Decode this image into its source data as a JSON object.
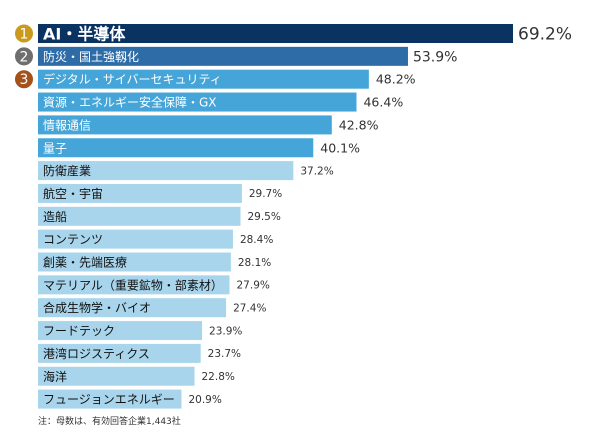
{
  "chart_data": {
    "type": "bar",
    "orientation": "horizontal",
    "categories": [
      "AI・半導体",
      "防災・国土強靱化",
      "デジタル・サイバーセキュリティ",
      "資源・エネルギー安全保障・GX",
      "情報通信",
      "量子",
      "防衛産業",
      "航空・宇宙",
      "造船",
      "コンテンツ",
      "創薬・先端医療",
      "マテリアル（重要鉱物・部素材）",
      "合成生物学・バイオ",
      "フードテック",
      "港湾ロジスティクス",
      "海洋",
      "フュージョンエネルギー"
    ],
    "values": [
      69.2,
      53.9,
      48.2,
      46.4,
      42.8,
      40.1,
      37.2,
      29.7,
      29.5,
      28.4,
      28.1,
      27.9,
      27.4,
      23.9,
      23.7,
      22.8,
      20.9
    ],
    "value_labels": [
      "69.2%",
      "53.9%",
      "48.2%",
      "46.4%",
      "42.8%",
      "40.1%",
      "37.2%",
      "29.7%",
      "29.5%",
      "28.4%",
      "28.1%",
      "27.9%",
      "27.4%",
      "23.9%",
      "23.7%",
      "22.8%",
      "20.9%"
    ],
    "rank_badges": [
      "1",
      "2",
      "3"
    ],
    "unit": "%",
    "xlim": [
      0,
      70
    ],
    "grid": false,
    "colors": {
      "rank1": "#0b3362",
      "rank2": "#2e6ca8",
      "mid": "#45a5d8",
      "light": "#a8d5ec",
      "badge1": "#c99a1e",
      "badge2": "#6e6e6e",
      "badge3": "#a4511c"
    }
  },
  "note": "注：母数は、有効回答企業1,443社"
}
